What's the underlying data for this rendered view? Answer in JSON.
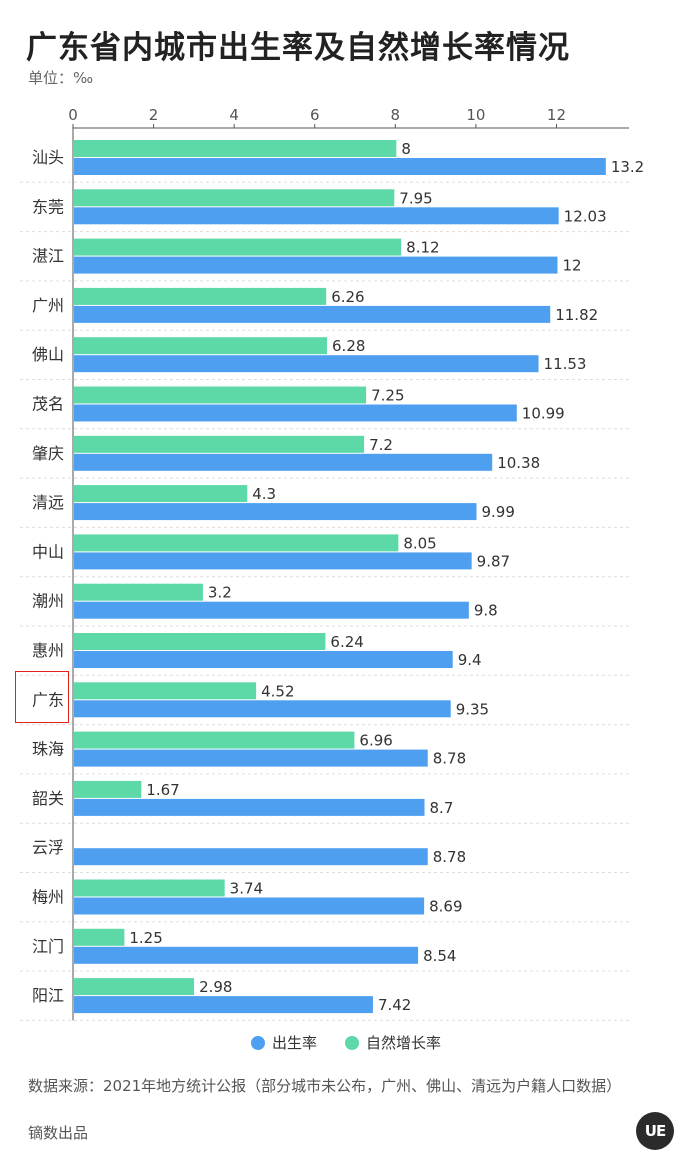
{
  "title": "广东省内城市出生率及自然增长率情况",
  "unit_label": "单位：‰",
  "source": "数据来源：2021年地方统计公报（部分城市未公布，广州、佛山、清远为户籍人口数据）",
  "credit": "镝数出品",
  "logo_text": "UE",
  "highlighted_category": "广东",
  "colors": {
    "birth_rate": "#4f9ff0",
    "natural_growth": "#5dd9a8",
    "highlight_box": "#e2231a",
    "grid": "#dddddd"
  },
  "chart_data": {
    "type": "bar",
    "orientation": "horizontal",
    "categories": [
      "汕头",
      "东莞",
      "湛江",
      "广州",
      "佛山",
      "茂名",
      "肇庆",
      "清远",
      "中山",
      "潮州",
      "惠州",
      "广东",
      "珠海",
      "韶关",
      "云浮",
      "梅州",
      "江门",
      "阳江"
    ],
    "series": [
      {
        "name": "自然增长率",
        "color": "#5dd9a8",
        "values": [
          8,
          7.95,
          8.12,
          6.26,
          6.28,
          7.25,
          7.2,
          4.3,
          8.05,
          3.2,
          6.24,
          4.52,
          6.96,
          1.67,
          null,
          3.74,
          1.25,
          2.98
        ]
      },
      {
        "name": "出生率",
        "color": "#4f9ff0",
        "values": [
          13.2,
          12.03,
          12,
          11.82,
          11.53,
          10.99,
          10.38,
          9.99,
          9.87,
          9.8,
          9.4,
          9.35,
          8.78,
          8.7,
          8.78,
          8.69,
          8.54,
          7.42
        ]
      }
    ],
    "xlim": [
      0,
      13.8
    ],
    "xticks": [
      0,
      2,
      4,
      6,
      8,
      10,
      12
    ],
    "grid": "horizontal dashed separators",
    "legend": [
      {
        "label": "出生率",
        "color": "#4f9ff0"
      },
      {
        "label": "自然增长率",
        "color": "#5dd9a8"
      }
    ],
    "legend_position": "bottom-center"
  }
}
